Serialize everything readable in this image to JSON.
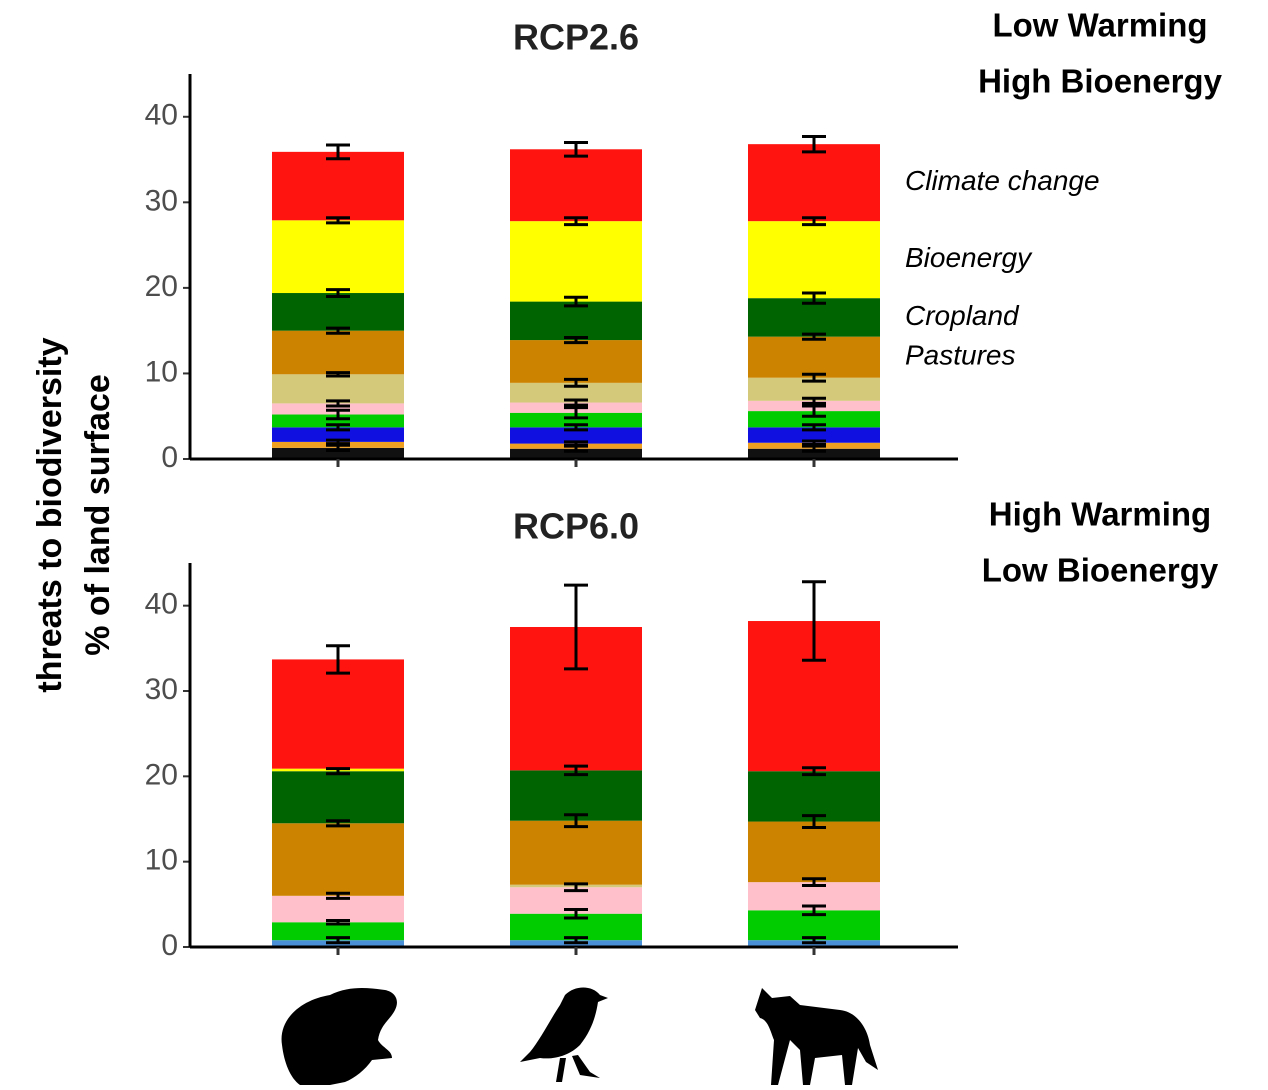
{
  "ylabel": [
    "threats to biodiversity",
    "% of land surface"
  ],
  "chart_data": [
    {
      "type": "bar",
      "stacked": true,
      "title": "RCP2.6",
      "annotation": [
        "Low Warming",
        "High Bioenergy"
      ],
      "categories": [
        null,
        null,
        null
      ],
      "ylim": [
        0,
        45
      ],
      "yticks": [
        0,
        10,
        20,
        30,
        40
      ],
      "series": [
        {
          "color": "#111111",
          "values": [
            1.3,
            1.2,
            1.2
          ],
          "errors": [
            0.3,
            0.3,
            0.3
          ]
        },
        {
          "color": "#f0a020",
          "values": [
            0.7,
            0.6,
            0.7
          ],
          "errors": [
            0.2,
            0.2,
            0.2
          ]
        },
        {
          "color": "#1010e0",
          "values": [
            1.7,
            1.9,
            1.8
          ],
          "errors": [
            0.3,
            0.3,
            0.3
          ]
        },
        {
          "color": "#00cc00",
          "values": [
            1.5,
            1.7,
            1.9
          ],
          "errors": [
            0.5,
            0.6,
            0.6
          ]
        },
        {
          "color": "#ffc0cb",
          "values": [
            1.3,
            1.2,
            1.2
          ],
          "errors": [
            0.3,
            0.3,
            0.3
          ]
        },
        {
          "color": "#d4c97a",
          "values": [
            3.4,
            2.3,
            2.7
          ],
          "errors": [
            0.2,
            0.4,
            0.4
          ]
        },
        {
          "name": "Pastures",
          "color": "#cc8400",
          "values": [
            5.1,
            5.0,
            4.8
          ],
          "errors": [
            0.3,
            0.3,
            0.3
          ]
        },
        {
          "name": "Cropland",
          "color": "#006400",
          "values": [
            4.4,
            4.5,
            4.5
          ],
          "errors": [
            0.4,
            0.5,
            0.6
          ]
        },
        {
          "name": "Bioenergy",
          "color": "#ffff00",
          "values": [
            8.5,
            9.4,
            9.0
          ],
          "errors": [
            0.3,
            0.4,
            0.4
          ]
        },
        {
          "name": "Climate change",
          "color": "#ff1410",
          "values": [
            8.0,
            8.4,
            9.0
          ],
          "errors": [
            0.8,
            0.8,
            0.9
          ]
        }
      ]
    },
    {
      "type": "bar",
      "stacked": true,
      "title": "RCP6.0",
      "annotation": [
        "High Warming",
        "Low Bioenergy"
      ],
      "categories": [
        null,
        null,
        null
      ],
      "ylim": [
        0,
        45
      ],
      "yticks": [
        0,
        10,
        20,
        30,
        40
      ],
      "series": [
        {
          "color": "#4a90d9",
          "values": [
            0.8,
            0.8,
            0.8
          ],
          "errors": [
            0.3,
            0.3,
            0.3
          ]
        },
        {
          "color": "#00cc00",
          "values": [
            2.1,
            3.1,
            3.5
          ],
          "errors": [
            0.2,
            0.5,
            0.5
          ]
        },
        {
          "color": "#ffc0cb",
          "values": [
            3.1,
            3.1,
            3.3
          ],
          "errors": [
            0.3,
            0.4,
            0.4
          ]
        },
        {
          "color": "#d4c97a",
          "values": [
            0,
            0.3,
            0
          ],
          "errors": [
            null,
            null,
            null
          ]
        },
        {
          "color": "#cc8400",
          "values": [
            8.5,
            7.5,
            7.1
          ],
          "errors": [
            0.3,
            0.7,
            0.7
          ]
        },
        {
          "color": "#006400",
          "values": [
            6.1,
            5.9,
            5.9
          ],
          "errors": [
            0.3,
            0.5,
            0.4
          ]
        },
        {
          "color": "#ffff00",
          "values": [
            0.3,
            0,
            0
          ],
          "errors": [
            null,
            null,
            null
          ]
        },
        {
          "color": "#ff1410",
          "values": [
            12.8,
            16.8,
            17.6
          ],
          "errors": [
            1.6,
            4.9,
            4.6
          ]
        }
      ]
    }
  ]
}
